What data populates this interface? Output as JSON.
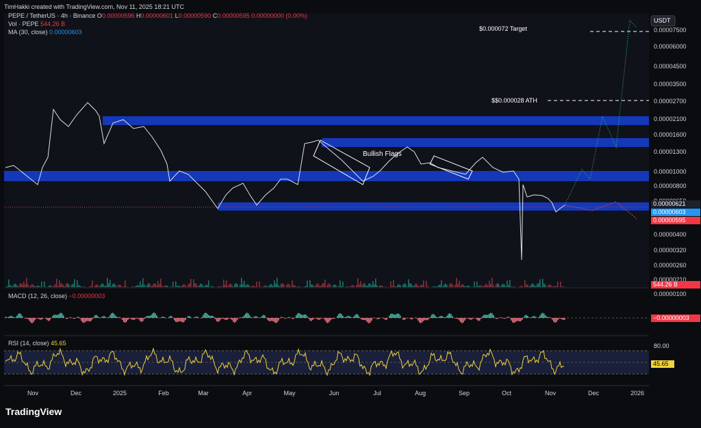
{
  "header": {
    "attribution": "TimHakki created with TradingView.com, Nov 11, 2025 18:21 UTC"
  },
  "legend": {
    "symbol": "PEPE / TetherUS · 4h · Binance",
    "ohlc": [
      {
        "label": "O",
        "value": "0.00000596"
      },
      {
        "label": "H",
        "value": "0.00000601"
      },
      {
        "label": "L",
        "value": "0.00000590"
      },
      {
        "label": "C",
        "value": "0.00000595"
      }
    ],
    "change": "0.00000000 (0.00%)"
  },
  "volume": {
    "label": "Vol · PEPE",
    "value": "544.26 B"
  },
  "ma": {
    "label": "MA (30, close)",
    "value": "0.00000603"
  },
  "macd": {
    "label": "MACD (12, 26, close)",
    "value": "−0.00000003"
  },
  "rsi": {
    "label": "RSI (14, close)",
    "value": "45.65"
  },
  "price_axis": {
    "currency": "USDT",
    "labels": [
      "0.00007500",
      "0.00006000",
      "0.00004500",
      "0.00003500",
      "0.00002700",
      "0.00002100",
      "0.00001600",
      "0.00001300",
      "0.00001000",
      "0.00000800",
      "0.00000650",
      "0.00000400",
      "0.00000320",
      "0.00000260",
      "0.00000210"
    ],
    "tags": [
      "0.00000621",
      "0.00000603",
      "0.00000595",
      "544.26 B"
    ]
  },
  "macd_axis": {
    "labels": [
      "0.00000100"
    ],
    "tag": "−0.00000003"
  },
  "rsi_axis": {
    "labels": [
      "80.00"
    ],
    "tag": "45.65"
  },
  "time_axis": {
    "labels": [
      "Nov",
      "Dec",
      "2025",
      "Feb",
      "Mar",
      "Apr",
      "May",
      "Jun",
      "Jul",
      "Aug",
      "Sep",
      "Oct",
      "Nov",
      "Dec",
      "2026"
    ]
  },
  "annotations": {
    "target": "$0.000072 Target",
    "ath": "$$0.000028 ATH",
    "flags": "Bullish Flags"
  },
  "footer": {
    "logo": "TradingView"
  }
}
